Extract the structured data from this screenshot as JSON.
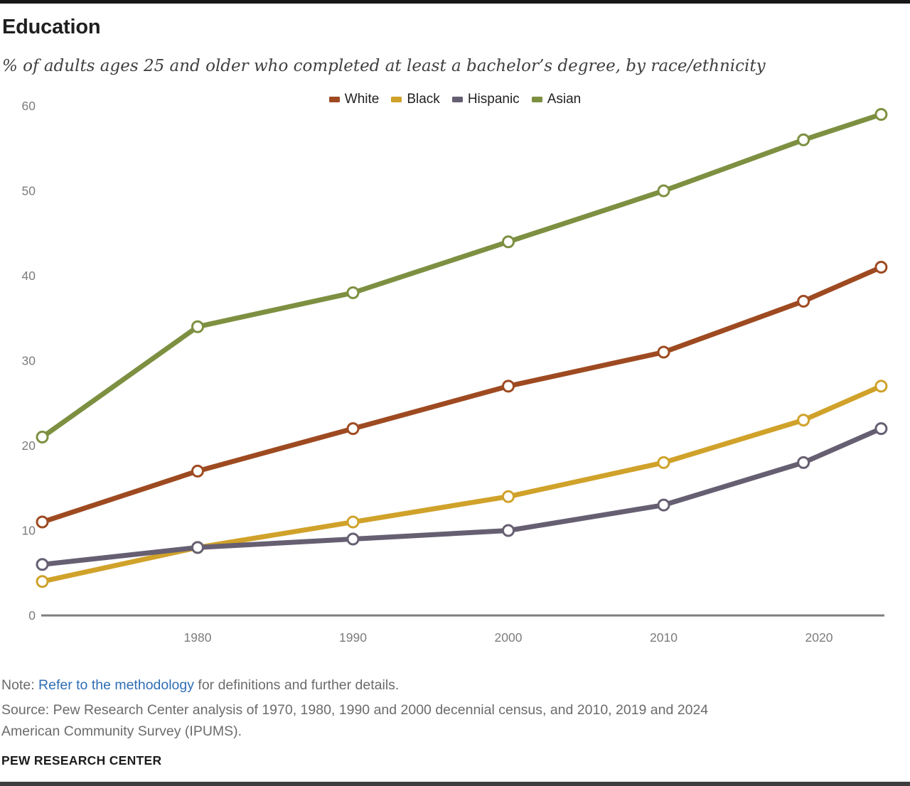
{
  "header": {
    "title": "Education",
    "subtitle": "% of adults ages 25 and older who completed at least a bachelor’s degree, by race/ethnicity"
  },
  "chart_data": {
    "type": "line",
    "x": [
      1970,
      1980,
      1990,
      2000,
      2010,
      2019,
      2024
    ],
    "series": [
      {
        "name": "White",
        "color": "#9e4a21",
        "values": [
          11,
          17,
          22,
          27,
          31,
          37,
          41
        ]
      },
      {
        "name": "Black",
        "color": "#d0a22a",
        "values": [
          4,
          8,
          11,
          14,
          18,
          23,
          27
        ]
      },
      {
        "name": "Hispanic",
        "color": "#665f72",
        "values": [
          6,
          8,
          9,
          10,
          13,
          18,
          22
        ]
      },
      {
        "name": "Asian",
        "color": "#7d9041",
        "values": [
          21,
          34,
          38,
          44,
          50,
          56,
          59
        ]
      }
    ],
    "y_ticks": [
      0,
      10,
      20,
      30,
      40,
      50,
      60
    ],
    "ylim": [
      0,
      60
    ],
    "x_ticks": [
      {
        "year": 1980,
        "label": "1980"
      },
      {
        "year": 1990,
        "label": "1990"
      },
      {
        "year": 2000,
        "label": "2000"
      },
      {
        "year": 2010,
        "label": "2010"
      },
      {
        "year": 2020,
        "label": "2020"
      }
    ],
    "grid": false,
    "legend_position": "top-center",
    "marker": "open-circle"
  },
  "footnotes": {
    "note_prefix": "Note: ",
    "note_link": "Refer to the methodology",
    "note_suffix": " for definitions and further details.",
    "source_lines": [
      "Source: Pew Research Center analysis of 1970, 1980, 1990 and 2000 decennial census, and 2010, 2019 and 2024",
      "American Community Survey (IPUMS)."
    ],
    "footer": "PEW RESEARCH CENTER"
  },
  "colors": {
    "link": "#2f6eb5",
    "axis_line": "#7f7f7f",
    "tick_label": "#7c7c7c",
    "top_bar": "#171717",
    "bottom_bar": "#3d3d3d"
  }
}
